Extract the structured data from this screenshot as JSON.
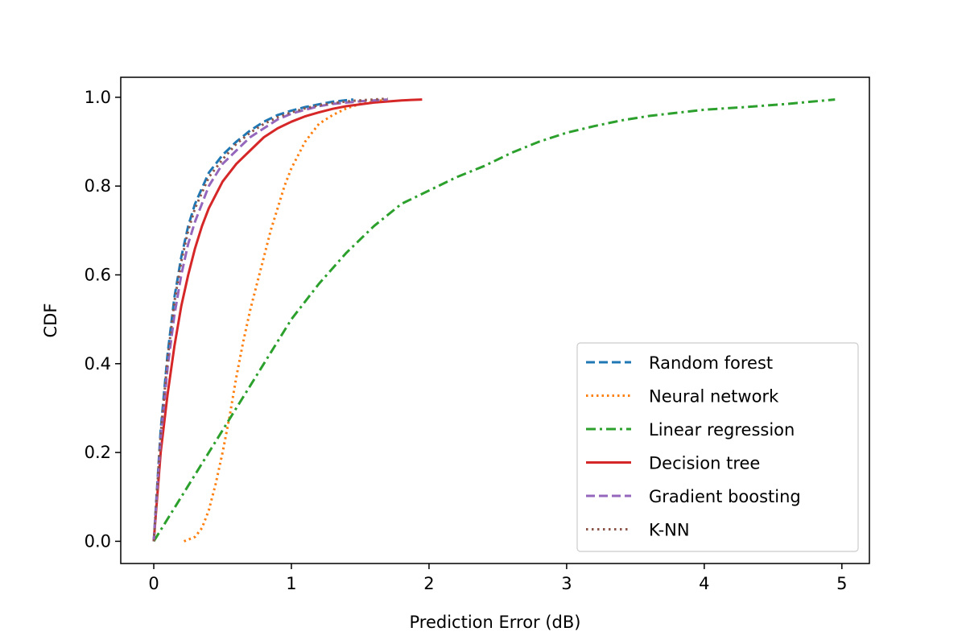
{
  "chart_data": {
    "type": "line",
    "title": "",
    "xlabel": "Prediction Error (dB)",
    "ylabel": "CDF",
    "xlim": [
      -0.24,
      5.2
    ],
    "ylim": [
      -0.05,
      1.045
    ],
    "xticks": [
      0,
      1,
      2,
      3,
      4,
      5
    ],
    "xtick_labels": [
      "0",
      "1",
      "2",
      "3",
      "4",
      "5"
    ],
    "yticks": [
      0.0,
      0.2,
      0.4,
      0.6,
      0.8,
      1.0
    ],
    "ytick_labels": [
      "0.0",
      "0.2",
      "0.4",
      "0.6",
      "0.8",
      "1.0"
    ],
    "grid": false,
    "legend_position": "lower-right",
    "series": [
      {
        "name": "Random forest",
        "color": "#1f77b4",
        "dash": "dashed",
        "x": [
          0,
          0.05,
          0.1,
          0.15,
          0.2,
          0.25,
          0.3,
          0.4,
          0.5,
          0.6,
          0.7,
          0.8,
          0.9,
          1.0,
          1.1,
          1.2,
          1.3,
          1.45
        ],
        "y": [
          0,
          0.25,
          0.42,
          0.55,
          0.64,
          0.71,
          0.76,
          0.83,
          0.87,
          0.9,
          0.925,
          0.945,
          0.96,
          0.97,
          0.978,
          0.984,
          0.99,
          0.995
        ]
      },
      {
        "name": "Neural network",
        "color": "#ff7f0e",
        "dash": "dotted",
        "x": [
          0.22,
          0.3,
          0.35,
          0.4,
          0.45,
          0.5,
          0.55,
          0.6,
          0.65,
          0.7,
          0.75,
          0.8,
          0.85,
          0.9,
          0.95,
          1.0,
          1.05,
          1.1,
          1.15,
          1.2,
          1.3,
          1.4,
          1.5,
          1.6,
          1.7
        ],
        "y": [
          0,
          0.01,
          0.03,
          0.07,
          0.13,
          0.2,
          0.28,
          0.37,
          0.45,
          0.52,
          0.58,
          0.64,
          0.7,
          0.75,
          0.8,
          0.84,
          0.87,
          0.9,
          0.92,
          0.94,
          0.96,
          0.975,
          0.985,
          0.99,
          0.995
        ]
      },
      {
        "name": "Linear regression",
        "color": "#2ca02c",
        "dash": "dashdot",
        "x": [
          0,
          0.1,
          0.2,
          0.3,
          0.4,
          0.5,
          0.6,
          0.7,
          0.8,
          0.9,
          1.0,
          1.2,
          1.4,
          1.6,
          1.8,
          2.0,
          2.2,
          2.4,
          2.6,
          2.8,
          3.0,
          3.2,
          3.4,
          3.6,
          3.8,
          4.0,
          4.3,
          4.6,
          4.95
        ],
        "y": [
          0,
          0.05,
          0.1,
          0.15,
          0.2,
          0.25,
          0.3,
          0.35,
          0.4,
          0.45,
          0.5,
          0.58,
          0.65,
          0.71,
          0.76,
          0.79,
          0.82,
          0.845,
          0.875,
          0.9,
          0.92,
          0.935,
          0.948,
          0.958,
          0.965,
          0.972,
          0.978,
          0.985,
          0.995
        ]
      },
      {
        "name": "Decision tree",
        "color": "#d62728",
        "dash": "solid",
        "x": [
          0,
          0.05,
          0.1,
          0.15,
          0.2,
          0.25,
          0.3,
          0.35,
          0.4,
          0.5,
          0.6,
          0.7,
          0.8,
          0.9,
          1.0,
          1.1,
          1.2,
          1.3,
          1.4,
          1.6,
          1.8,
          1.95
        ],
        "y": [
          0,
          0.2,
          0.33,
          0.44,
          0.53,
          0.6,
          0.66,
          0.71,
          0.75,
          0.81,
          0.85,
          0.88,
          0.91,
          0.93,
          0.945,
          0.957,
          0.966,
          0.974,
          0.98,
          0.988,
          0.993,
          0.995
        ]
      },
      {
        "name": "Gradient boosting",
        "color": "#9467bd",
        "dash": "dashed",
        "x": [
          0,
          0.05,
          0.1,
          0.15,
          0.2,
          0.25,
          0.3,
          0.4,
          0.5,
          0.6,
          0.7,
          0.8,
          0.9,
          1.0,
          1.1,
          1.2,
          1.3,
          1.5,
          1.7
        ],
        "y": [
          0,
          0.23,
          0.39,
          0.51,
          0.6,
          0.67,
          0.72,
          0.8,
          0.85,
          0.88,
          0.91,
          0.93,
          0.95,
          0.963,
          0.972,
          0.98,
          0.985,
          0.991,
          0.995
        ]
      },
      {
        "name": "K-NN",
        "color": "#8c564b",
        "dash": "densedotted",
        "x": [
          0,
          0.05,
          0.1,
          0.15,
          0.2,
          0.25,
          0.3,
          0.4,
          0.5,
          0.6,
          0.7,
          0.8,
          0.9,
          1.0,
          1.1,
          1.2,
          1.3,
          1.45,
          1.6,
          1.7
        ],
        "y": [
          0,
          0.24,
          0.41,
          0.54,
          0.63,
          0.7,
          0.75,
          0.82,
          0.86,
          0.895,
          0.92,
          0.94,
          0.955,
          0.966,
          0.975,
          0.982,
          0.987,
          0.992,
          0.995,
          0.997
        ]
      }
    ]
  }
}
